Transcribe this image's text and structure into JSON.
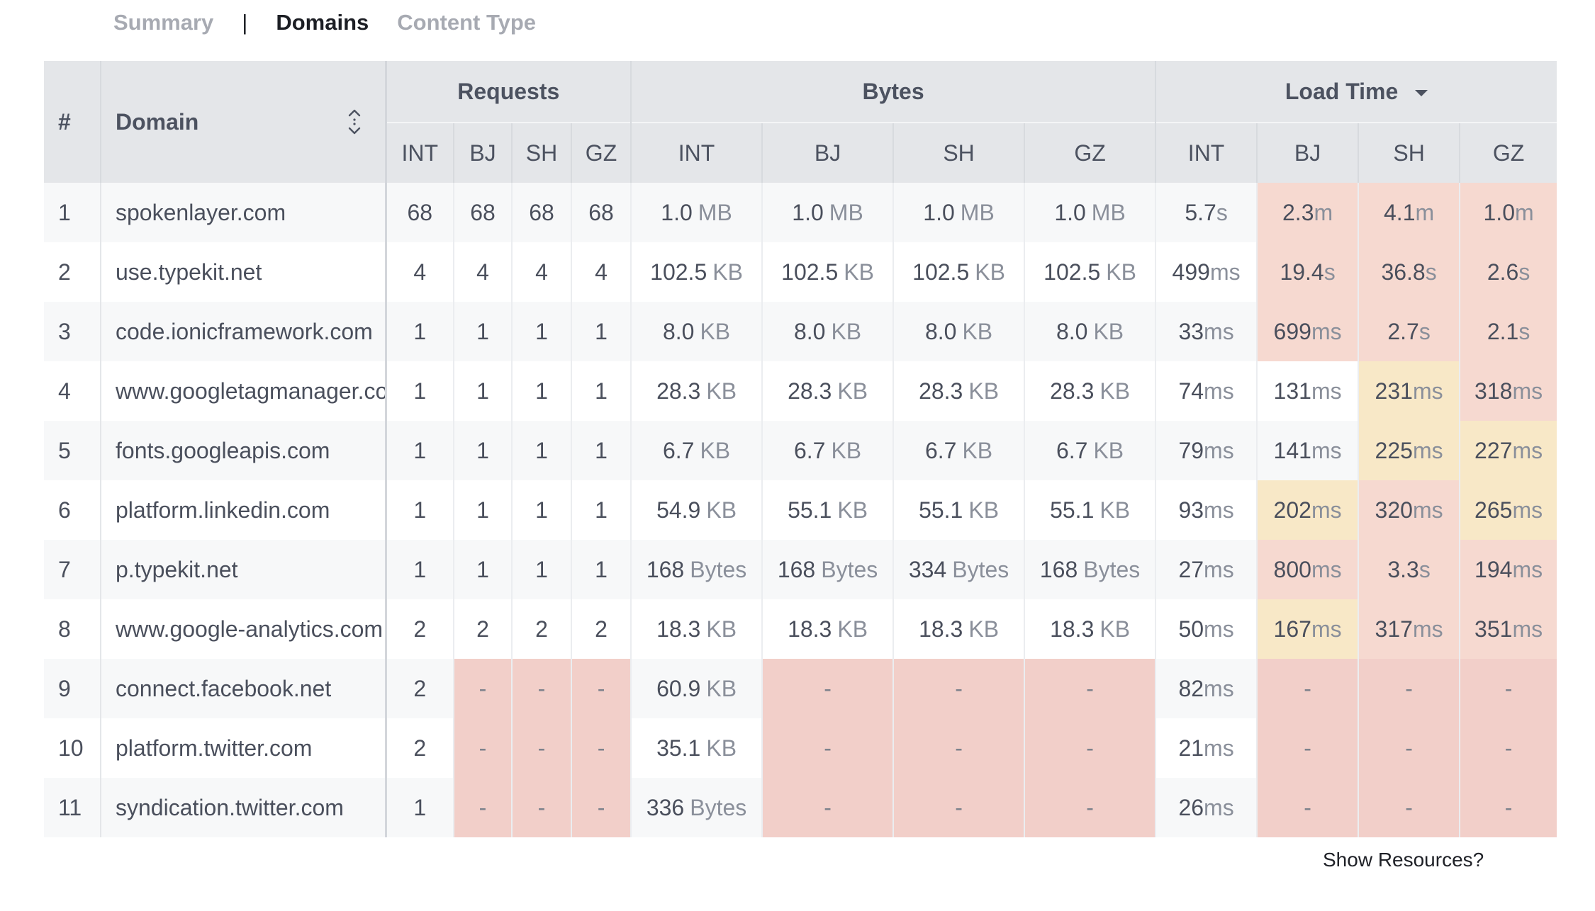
{
  "tabs": [
    {
      "label": "Summary"
    },
    {
      "label": "|"
    },
    {
      "label": "Domains"
    },
    {
      "label": "Content Type"
    }
  ],
  "active_tab": "Domains",
  "headers": {
    "hash": "#",
    "domain": "Domain",
    "requests": "Requests",
    "bytes": "Bytes",
    "load_time": "Load Time",
    "regions": [
      "INT",
      "BJ",
      "SH",
      "GZ"
    ]
  },
  "rows": [
    {
      "n": "1",
      "domain": "spokenlayer.com",
      "req": [
        "68",
        "68",
        "68",
        "68"
      ],
      "bytes": [
        [
          "1.0",
          "MB"
        ],
        [
          "1.0",
          "MB"
        ],
        [
          "1.0",
          "MB"
        ],
        [
          "1.0",
          "MB"
        ]
      ],
      "load": [
        [
          "5.7",
          "s"
        ],
        [
          "2.3",
          "m"
        ],
        [
          "4.1",
          "m"
        ],
        [
          "1.0",
          "m"
        ]
      ],
      "load_bg": [
        "",
        "pink",
        "pink",
        "pink"
      ]
    },
    {
      "n": "2",
      "domain": "use.typekit.net",
      "req": [
        "4",
        "4",
        "4",
        "4"
      ],
      "bytes": [
        [
          "102.5",
          "KB"
        ],
        [
          "102.5",
          "KB"
        ],
        [
          "102.5",
          "KB"
        ],
        [
          "102.5",
          "KB"
        ]
      ],
      "load": [
        [
          "499",
          "ms"
        ],
        [
          "19.4",
          "s"
        ],
        [
          "36.8",
          "s"
        ],
        [
          "2.6",
          "s"
        ]
      ],
      "load_bg": [
        "",
        "pink",
        "pink",
        "pink"
      ]
    },
    {
      "n": "3",
      "domain": "code.ionicframework.com",
      "req": [
        "1",
        "1",
        "1",
        "1"
      ],
      "bytes": [
        [
          "8.0",
          "KB"
        ],
        [
          "8.0",
          "KB"
        ],
        [
          "8.0",
          "KB"
        ],
        [
          "8.0",
          "KB"
        ]
      ],
      "load": [
        [
          "33",
          "ms"
        ],
        [
          "699",
          "ms"
        ],
        [
          "2.7",
          "s"
        ],
        [
          "2.1",
          "s"
        ]
      ],
      "load_bg": [
        "",
        "pink",
        "pink",
        "pink"
      ]
    },
    {
      "n": "4",
      "domain": "www.googletagmanager.com",
      "req": [
        "1",
        "1",
        "1",
        "1"
      ],
      "bytes": [
        [
          "28.3",
          "KB"
        ],
        [
          "28.3",
          "KB"
        ],
        [
          "28.3",
          "KB"
        ],
        [
          "28.3",
          "KB"
        ]
      ],
      "load": [
        [
          "74",
          "ms"
        ],
        [
          "131",
          "ms"
        ],
        [
          "231",
          "ms"
        ],
        [
          "318",
          "ms"
        ]
      ],
      "load_bg": [
        "",
        "",
        "yel",
        "pink"
      ]
    },
    {
      "n": "5",
      "domain": "fonts.googleapis.com",
      "req": [
        "1",
        "1",
        "1",
        "1"
      ],
      "bytes": [
        [
          "6.7",
          "KB"
        ],
        [
          "6.7",
          "KB"
        ],
        [
          "6.7",
          "KB"
        ],
        [
          "6.7",
          "KB"
        ]
      ],
      "load": [
        [
          "79",
          "ms"
        ],
        [
          "141",
          "ms"
        ],
        [
          "225",
          "ms"
        ],
        [
          "227",
          "ms"
        ]
      ],
      "load_bg": [
        "",
        "",
        "yel",
        "yel"
      ]
    },
    {
      "n": "6",
      "domain": "platform.linkedin.com",
      "req": [
        "1",
        "1",
        "1",
        "1"
      ],
      "bytes": [
        [
          "54.9",
          "KB"
        ],
        [
          "55.1",
          "KB"
        ],
        [
          "55.1",
          "KB"
        ],
        [
          "55.1",
          "KB"
        ]
      ],
      "load": [
        [
          "93",
          "ms"
        ],
        [
          "202",
          "ms"
        ],
        [
          "320",
          "ms"
        ],
        [
          "265",
          "ms"
        ]
      ],
      "load_bg": [
        "",
        "yel",
        "pink",
        "yel"
      ]
    },
    {
      "n": "7",
      "domain": "p.typekit.net",
      "req": [
        "1",
        "1",
        "1",
        "1"
      ],
      "bytes": [
        [
          "168",
          "Bytes"
        ],
        [
          "168",
          "Bytes"
        ],
        [
          "334",
          "Bytes"
        ],
        [
          "168",
          "Bytes"
        ]
      ],
      "load": [
        [
          "27",
          "ms"
        ],
        [
          "800",
          "ms"
        ],
        [
          "3.3",
          "s"
        ],
        [
          "194",
          "ms"
        ]
      ],
      "load_bg": [
        "",
        "pink",
        "pink",
        "pink"
      ]
    },
    {
      "n": "8",
      "domain": "www.google-analytics.com",
      "req": [
        "2",
        "2",
        "2",
        "2"
      ],
      "bytes": [
        [
          "18.3",
          "KB"
        ],
        [
          "18.3",
          "KB"
        ],
        [
          "18.3",
          "KB"
        ],
        [
          "18.3",
          "KB"
        ]
      ],
      "load": [
        [
          "50",
          "ms"
        ],
        [
          "167",
          "ms"
        ],
        [
          "317",
          "ms"
        ],
        [
          "351",
          "ms"
        ]
      ],
      "load_bg": [
        "",
        "yel",
        "pink",
        "pink"
      ]
    },
    {
      "n": "9",
      "domain": "connect.facebook.net",
      "req": [
        "2",
        "-",
        "-",
        "-"
      ],
      "bytes": [
        [
          "60.9",
          "KB"
        ],
        [
          "-",
          ""
        ],
        [
          "-",
          ""
        ],
        [
          "-",
          ""
        ]
      ],
      "load": [
        [
          "82",
          "ms"
        ],
        [
          "-",
          ""
        ],
        [
          "-",
          ""
        ],
        [
          "-",
          ""
        ]
      ],
      "load_bg": [
        "",
        "red",
        "red",
        "red"
      ]
    },
    {
      "n": "10",
      "domain": "platform.twitter.com",
      "req": [
        "2",
        "-",
        "-",
        "-"
      ],
      "bytes": [
        [
          "35.1",
          "KB"
        ],
        [
          "-",
          ""
        ],
        [
          "-",
          ""
        ],
        [
          "-",
          ""
        ]
      ],
      "load": [
        [
          "21",
          "ms"
        ],
        [
          "-",
          ""
        ],
        [
          "-",
          ""
        ],
        [
          "-",
          ""
        ]
      ],
      "load_bg": [
        "",
        "red",
        "red",
        "red"
      ]
    },
    {
      "n": "11",
      "domain": "syndication.twitter.com",
      "req": [
        "1",
        "-",
        "-",
        "-"
      ],
      "bytes": [
        [
          "336",
          "Bytes"
        ],
        [
          "-",
          ""
        ],
        [
          "-",
          ""
        ],
        [
          "-",
          ""
        ]
      ],
      "load": [
        [
          "26",
          "ms"
        ],
        [
          "-",
          ""
        ],
        [
          "-",
          ""
        ],
        [
          "-",
          ""
        ]
      ],
      "load_bg": [
        "",
        "red",
        "red",
        "red"
      ]
    }
  ],
  "footer": {
    "show_resources": "Show Resources?"
  },
  "colors": {
    "pink": "#f6d9d0",
    "yellow": "#f8e8c7",
    "red": "#f2cfc9",
    "header": "#e4e6e9"
  }
}
